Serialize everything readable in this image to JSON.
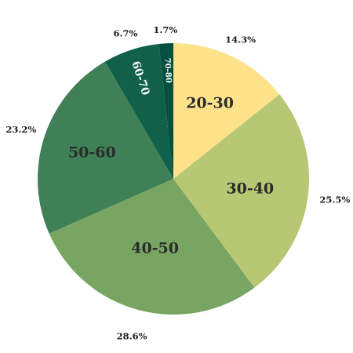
{
  "chart_data": {
    "type": "pie",
    "start": "top",
    "direction": "clockwise",
    "slices": [
      {
        "label": "20-30",
        "value": 14.3,
        "pct_label": "14.3%",
        "color": "#fde28a"
      },
      {
        "label": "30-40",
        "value": 25.5,
        "pct_label": "25.5%",
        "color": "#b8c774"
      },
      {
        "label": "40-50",
        "value": 28.6,
        "pct_label": "28.6%",
        "color": "#78a662"
      },
      {
        "label": "50-60",
        "value": 23.2,
        "pct_label": "23.2%",
        "color": "#3f8057"
      },
      {
        "label": "60-70",
        "value": 6.7,
        "pct_label": "6.7%",
        "color": "#11604a"
      },
      {
        "label": "70-80",
        "value": 1.7,
        "pct_label": "1.7%",
        "color": "#054f41"
      }
    ]
  }
}
